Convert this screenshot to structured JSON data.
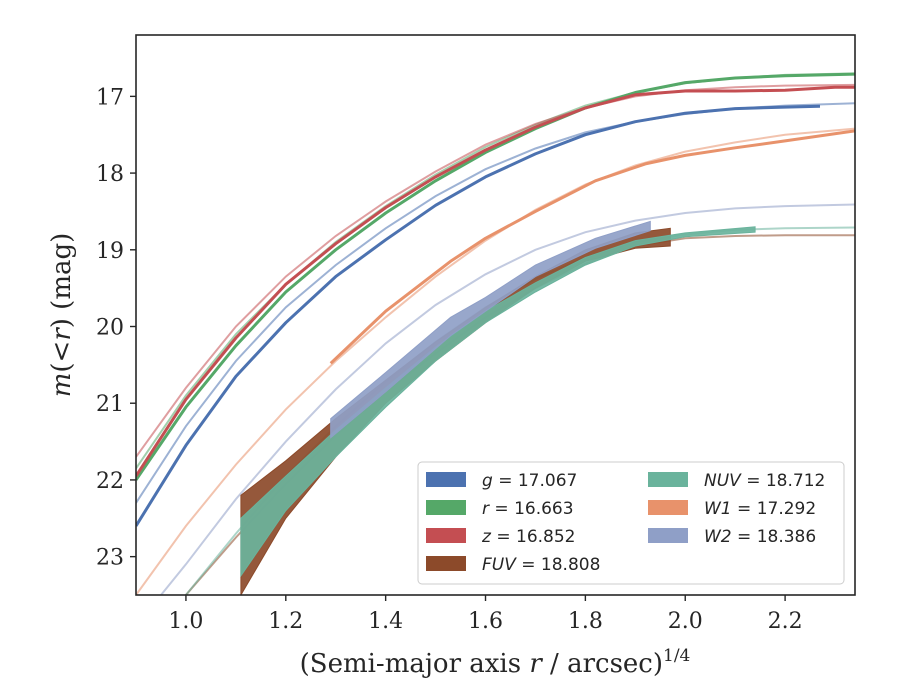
{
  "chart_data": {
    "type": "line",
    "xlabel": "(Semi-major axis r / arcsec)",
    "xlabel_prefix": "(Semi-major axis ",
    "xlabel_var": "r",
    "xlabel_suffix": " / arcsec)",
    "xlabel_exp": "1/4",
    "ylabel": "m(<r) (mag)",
    "ylabel_m": "m",
    "ylabel_mid": "(<",
    "ylabel_r": "r",
    "ylabel_end": ") (mag)",
    "xlim": [
      0.9,
      2.34
    ],
    "ylim": [
      23.5,
      16.2
    ],
    "y_inverted": true,
    "grid": false,
    "legend_position": "lower-right",
    "x_ticks": [
      "1.0",
      "1.2",
      "1.4",
      "1.6",
      "1.8",
      "2.0",
      "2.2"
    ],
    "y_ticks": [
      "17",
      "18",
      "19",
      "20",
      "21",
      "22",
      "23"
    ],
    "series": [
      {
        "name": "g",
        "legend_name": "g",
        "legend_value": "17.067",
        "color": "#4c72b0",
        "model": [
          [
            0.9,
            22.3
          ],
          [
            1.0,
            21.3
          ],
          [
            1.1,
            20.45
          ],
          [
            1.2,
            19.75
          ],
          [
            1.3,
            19.2
          ],
          [
            1.4,
            18.72
          ],
          [
            1.5,
            18.3
          ],
          [
            1.6,
            17.95
          ],
          [
            1.7,
            17.68
          ],
          [
            1.8,
            17.47
          ],
          [
            1.9,
            17.33
          ],
          [
            2.0,
            17.23
          ],
          [
            2.1,
            17.16
          ],
          [
            2.2,
            17.12
          ],
          [
            2.34,
            17.09
          ]
        ],
        "data": [
          [
            0.9,
            22.6
          ],
          [
            1.0,
            21.55
          ],
          [
            1.1,
            20.65
          ],
          [
            1.2,
            19.95
          ],
          [
            1.3,
            19.35
          ],
          [
            1.4,
            18.87
          ],
          [
            1.5,
            18.42
          ],
          [
            1.6,
            18.05
          ],
          [
            1.7,
            17.75
          ],
          [
            1.8,
            17.5
          ],
          [
            1.9,
            17.33
          ],
          [
            2.0,
            17.22
          ],
          [
            2.1,
            17.16
          ],
          [
            2.2,
            17.14
          ],
          [
            2.27,
            17.13
          ]
        ]
      },
      {
        "name": "r",
        "legend_name": "r",
        "legend_value": "16.663",
        "color": "#55a868",
        "model": [
          [
            0.9,
            21.85
          ],
          [
            1.0,
            20.9
          ],
          [
            1.1,
            20.1
          ],
          [
            1.2,
            19.45
          ],
          [
            1.3,
            18.9
          ],
          [
            1.4,
            18.43
          ],
          [
            1.5,
            18.02
          ],
          [
            1.6,
            17.66
          ],
          [
            1.7,
            17.37
          ],
          [
            1.8,
            17.12
          ],
          [
            1.9,
            16.95
          ],
          [
            2.0,
            16.83
          ],
          [
            2.1,
            16.76
          ],
          [
            2.2,
            16.72
          ],
          [
            2.34,
            16.7
          ]
        ],
        "data": [
          [
            0.9,
            22.0
          ],
          [
            1.0,
            21.05
          ],
          [
            1.1,
            20.25
          ],
          [
            1.2,
            19.55
          ],
          [
            1.3,
            19.0
          ],
          [
            1.4,
            18.52
          ],
          [
            1.5,
            18.1
          ],
          [
            1.6,
            17.73
          ],
          [
            1.7,
            17.42
          ],
          [
            1.8,
            17.15
          ],
          [
            1.9,
            16.95
          ],
          [
            2.0,
            16.82
          ],
          [
            2.1,
            16.76
          ],
          [
            2.2,
            16.73
          ],
          [
            2.34,
            16.71
          ]
        ]
      },
      {
        "name": "z",
        "legend_name": "z",
        "legend_value": "16.852",
        "color": "#c44e52",
        "model": [
          [
            0.9,
            21.7
          ],
          [
            1.0,
            20.8
          ],
          [
            1.1,
            20.0
          ],
          [
            1.2,
            19.35
          ],
          [
            1.3,
            18.82
          ],
          [
            1.4,
            18.37
          ],
          [
            1.5,
            17.98
          ],
          [
            1.6,
            17.63
          ],
          [
            1.7,
            17.36
          ],
          [
            1.8,
            17.15
          ],
          [
            1.9,
            17.0
          ],
          [
            2.0,
            16.92
          ],
          [
            2.1,
            16.88
          ],
          [
            2.2,
            16.86
          ],
          [
            2.34,
            16.85
          ]
        ],
        "data": [
          [
            0.9,
            21.95
          ],
          [
            1.0,
            20.95
          ],
          [
            1.1,
            20.15
          ],
          [
            1.2,
            19.45
          ],
          [
            1.3,
            18.92
          ],
          [
            1.4,
            18.45
          ],
          [
            1.5,
            18.05
          ],
          [
            1.6,
            17.7
          ],
          [
            1.7,
            17.4
          ],
          [
            1.8,
            17.15
          ],
          [
            1.9,
            16.98
          ],
          [
            2.0,
            16.93
          ],
          [
            2.1,
            16.93
          ],
          [
            2.2,
            16.92
          ],
          [
            2.3,
            16.88
          ],
          [
            2.34,
            16.88
          ]
        ]
      },
      {
        "name": "FUV",
        "legend_name": "FUV",
        "legend_value": "18.808",
        "color": "#8c4a2a",
        "model": [
          [
            1.0,
            23.5
          ],
          [
            1.1,
            22.75
          ],
          [
            1.2,
            22.05
          ],
          [
            1.3,
            21.42
          ],
          [
            1.4,
            20.85
          ],
          [
            1.5,
            20.35
          ],
          [
            1.6,
            19.88
          ],
          [
            1.7,
            19.5
          ],
          [
            1.8,
            19.18
          ],
          [
            1.9,
            18.95
          ],
          [
            2.0,
            18.85
          ],
          [
            2.1,
            18.82
          ],
          [
            2.2,
            18.81
          ],
          [
            2.34,
            18.81
          ]
        ],
        "band_upper": [
          [
            1.11,
            22.2
          ],
          [
            1.2,
            21.75
          ],
          [
            1.3,
            21.2
          ],
          [
            1.4,
            20.7
          ],
          [
            1.5,
            20.2
          ],
          [
            1.6,
            19.75
          ],
          [
            1.7,
            19.35
          ],
          [
            1.8,
            19.0
          ],
          [
            1.9,
            18.78
          ],
          [
            1.97,
            18.72
          ]
        ],
        "band_lower": [
          [
            1.11,
            23.5
          ],
          [
            1.2,
            22.5
          ],
          [
            1.3,
            21.7
          ],
          [
            1.4,
            21.0
          ],
          [
            1.5,
            20.45
          ],
          [
            1.6,
            19.95
          ],
          [
            1.7,
            19.5
          ],
          [
            1.8,
            19.15
          ],
          [
            1.9,
            18.98
          ],
          [
            1.97,
            18.95
          ]
        ]
      },
      {
        "name": "NUV",
        "legend_name": "NUV",
        "legend_value": "18.712",
        "color": "#6ab39c",
        "model": [
          [
            1.0,
            23.5
          ],
          [
            1.1,
            22.7
          ],
          [
            1.2,
            21.95
          ],
          [
            1.3,
            21.3
          ],
          [
            1.4,
            20.72
          ],
          [
            1.5,
            20.2
          ],
          [
            1.6,
            19.75
          ],
          [
            1.7,
            19.38
          ],
          [
            1.8,
            19.1
          ],
          [
            1.9,
            18.9
          ],
          [
            2.0,
            18.8
          ],
          [
            2.1,
            18.74
          ],
          [
            2.2,
            18.72
          ],
          [
            2.34,
            18.71
          ]
        ],
        "band_upper": [
          [
            1.11,
            22.5
          ],
          [
            1.2,
            21.95
          ],
          [
            1.3,
            21.35
          ],
          [
            1.4,
            20.8
          ],
          [
            1.5,
            20.27
          ],
          [
            1.6,
            19.8
          ],
          [
            1.7,
            19.43
          ],
          [
            1.8,
            19.1
          ],
          [
            1.9,
            18.88
          ],
          [
            2.0,
            18.78
          ],
          [
            2.14,
            18.7
          ]
        ],
        "band_lower": [
          [
            1.11,
            23.25
          ],
          [
            1.2,
            22.4
          ],
          [
            1.3,
            21.7
          ],
          [
            1.4,
            21.05
          ],
          [
            1.5,
            20.45
          ],
          [
            1.6,
            19.95
          ],
          [
            1.7,
            19.55
          ],
          [
            1.8,
            19.2
          ],
          [
            1.9,
            18.95
          ],
          [
            2.0,
            18.83
          ],
          [
            2.14,
            18.77
          ]
        ]
      },
      {
        "name": "W1",
        "legend_name": "W1",
        "legend_value": "17.292",
        "color": "#e8926b",
        "model": [
          [
            0.9,
            23.5
          ],
          [
            1.0,
            22.6
          ],
          [
            1.1,
            21.8
          ],
          [
            1.2,
            21.08
          ],
          [
            1.3,
            20.45
          ],
          [
            1.4,
            19.88
          ],
          [
            1.5,
            19.35
          ],
          [
            1.6,
            18.88
          ],
          [
            1.7,
            18.48
          ],
          [
            1.8,
            18.15
          ],
          [
            1.9,
            17.9
          ],
          [
            2.0,
            17.72
          ],
          [
            2.1,
            17.6
          ],
          [
            2.2,
            17.5
          ],
          [
            2.34,
            17.42
          ]
        ],
        "data": [
          [
            1.29,
            20.48
          ],
          [
            1.4,
            19.8
          ],
          [
            1.53,
            19.15
          ],
          [
            1.6,
            18.85
          ],
          [
            1.7,
            18.5
          ],
          [
            1.82,
            18.1
          ],
          [
            1.92,
            17.88
          ],
          [
            2.0,
            17.77
          ],
          [
            2.1,
            17.67
          ],
          [
            2.2,
            17.58
          ],
          [
            2.34,
            17.45
          ]
        ]
      },
      {
        "name": "W2",
        "legend_name": "W2",
        "legend_value": "18.386",
        "color": "#8f9fc7",
        "model": [
          [
            0.95,
            23.5
          ],
          [
            1.0,
            23.1
          ],
          [
            1.1,
            22.25
          ],
          [
            1.2,
            21.5
          ],
          [
            1.3,
            20.82
          ],
          [
            1.4,
            20.22
          ],
          [
            1.5,
            19.72
          ],
          [
            1.6,
            19.32
          ],
          [
            1.7,
            19.0
          ],
          [
            1.8,
            18.77
          ],
          [
            1.9,
            18.62
          ],
          [
            2.0,
            18.52
          ],
          [
            2.1,
            18.46
          ],
          [
            2.2,
            18.43
          ],
          [
            2.34,
            18.41
          ]
        ],
        "band_upper": [
          [
            1.29,
            21.2
          ],
          [
            1.4,
            20.6
          ],
          [
            1.53,
            19.88
          ],
          [
            1.6,
            19.62
          ],
          [
            1.7,
            19.2
          ],
          [
            1.82,
            18.85
          ],
          [
            1.93,
            18.63
          ]
        ],
        "band_lower": [
          [
            1.29,
            21.45
          ],
          [
            1.4,
            20.85
          ],
          [
            1.53,
            20.12
          ],
          [
            1.6,
            19.8
          ],
          [
            1.7,
            19.35
          ],
          [
            1.82,
            18.98
          ],
          [
            1.93,
            18.75
          ]
        ]
      }
    ]
  }
}
